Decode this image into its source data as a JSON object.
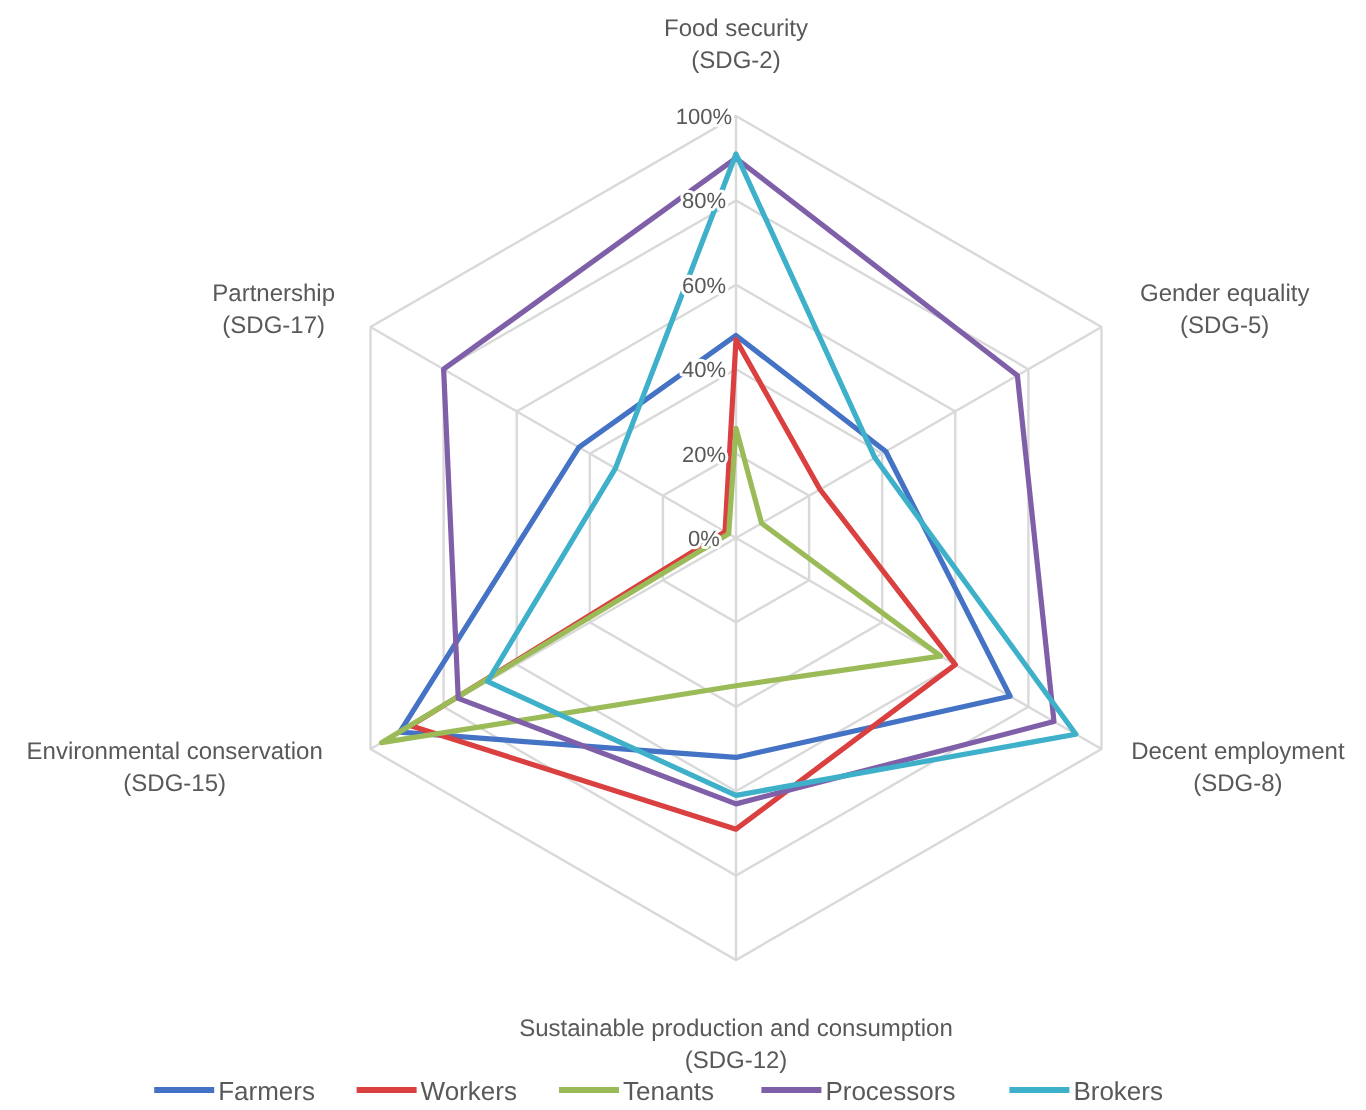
{
  "chart_data": {
    "type": "radar",
    "categories": [
      "Food security\n(SDG-2)",
      "Gender equality\n(SDG-5)",
      "Decent employment\n(SDG-8)",
      "Sustainable production and consumption\n(SDG-12)",
      "Environmental conservation\n(SDG-15)",
      "Partnership\n(SDG-17)"
    ],
    "series": [
      {
        "name": "Farmers",
        "color": "#4472c4",
        "values": [
          48,
          41,
          75,
          52,
          92,
          43
        ]
      },
      {
        "name": "Workers",
        "color": "#d9403f",
        "values": [
          47,
          23,
          60,
          69,
          89,
          3
        ]
      },
      {
        "name": "Tenants",
        "color": "#9bbb59",
        "values": [
          26,
          7,
          56,
          35,
          97,
          2
        ]
      },
      {
        "name": "Processors",
        "color": "#7f5fa8",
        "values": [
          90,
          77,
          87,
          63,
          76,
          80
        ]
      },
      {
        "name": "Brokers",
        "color": "#3fb0c9",
        "values": [
          91,
          38,
          93,
          61,
          68,
          33
        ]
      }
    ],
    "ylim": [
      0,
      100
    ],
    "yticks": [
      {
        "value": 0,
        "label": "0%"
      },
      {
        "value": 20,
        "label": "20%"
      },
      {
        "value": 40,
        "label": "40%"
      },
      {
        "value": 60,
        "label": "60%"
      },
      {
        "value": 80,
        "label": "80%"
      },
      {
        "value": 100,
        "label": "100%"
      }
    ],
    "grid": true,
    "legend": "bottom",
    "marker": "none",
    "line_style": "solid"
  }
}
